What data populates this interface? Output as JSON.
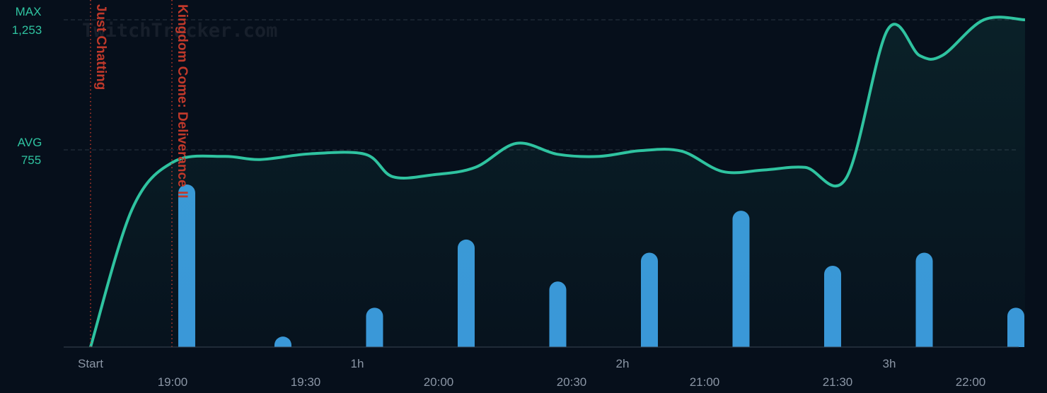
{
  "watermark": "TwitchTracker.com",
  "colors": {
    "background": "#060f1b",
    "viewer_line": "#2fc3a0",
    "bars": "#3a97d9",
    "game_marker": "#c0392b",
    "grid": "#2a3442"
  },
  "chart_data": {
    "type": "line",
    "title": "",
    "ylim": [
      0,
      1300
    ],
    "reference_lines": [
      {
        "name": "MAX",
        "value": 1253,
        "label": "1,253"
      },
      {
        "name": "AVG",
        "value": 755,
        "label": "755"
      }
    ],
    "duration_ticks": [
      "Start",
      "1h",
      "2h",
      "3h"
    ],
    "clock_ticks": [
      "19:00",
      "19:30",
      "20:00",
      "20:30",
      "21:00",
      "21:30",
      "22:00"
    ],
    "game_markers": [
      {
        "label": "Just Chatting"
      },
      {
        "label": "Kingdom Come: Deliverance II"
      }
    ],
    "series": [
      {
        "x": [
          "18:44",
          "18:53",
          "19:02",
          "19:13",
          "19:21",
          "19:32",
          "19:44",
          "19:50",
          "19:59",
          "20:08",
          "20:17",
          "20:26",
          "20:35",
          "20:44",
          "20:53",
          "21:02",
          "21:11",
          "21:20",
          "21:29",
          "21:38",
          "21:45",
          "21:50",
          "21:59",
          "22:08"
        ],
        "values": [
          0,
          525,
          708,
          730,
          718,
          740,
          738,
          652,
          660,
          688,
          780,
          738,
          730,
          752,
          750,
          672,
          678,
          688,
          648,
          1215,
          1116,
          1117,
          1253,
          1253
        ]
      },
      {
        "x": [
          "19:05",
          "19:26",
          "19:46",
          "20:06",
          "20:26",
          "20:46",
          "21:06",
          "21:26",
          "21:46",
          "22:06"
        ],
        "values": [
          62,
          4,
          15,
          41,
          25,
          36,
          52,
          31,
          36,
          15
        ],
        "relative_scale": true
      }
    ]
  }
}
